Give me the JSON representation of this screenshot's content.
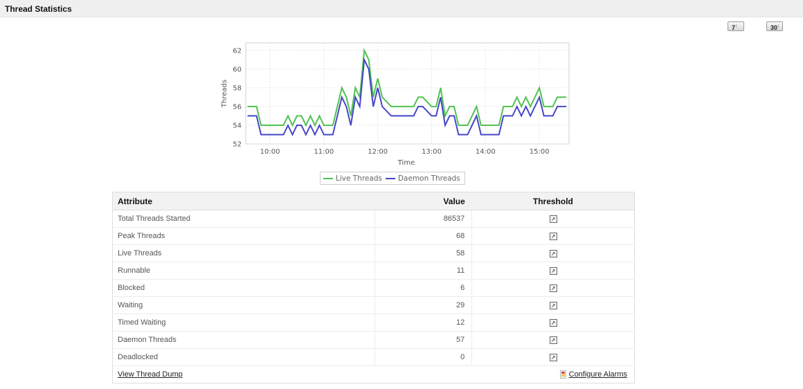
{
  "header": {
    "title": "Thread Statistics"
  },
  "period_buttons": [
    {
      "label": "7",
      "sup": "↑"
    },
    {
      "label": "30",
      "sup": "↑"
    }
  ],
  "chart_data": {
    "type": "line",
    "title": "",
    "xlabel": "Time",
    "ylabel": "Threads",
    "ylim": [
      52,
      62.8
    ],
    "yticks": [
      52,
      54,
      56,
      58,
      60,
      62
    ],
    "xlim": [
      "09:33",
      "15:33"
    ],
    "xticks": [
      "10:00",
      "11:00",
      "12:00",
      "13:00",
      "14:00",
      "15:00"
    ],
    "grid": true,
    "legend": "bottom",
    "x": [
      "09:35",
      "09:45",
      "09:50",
      "09:55",
      "10:05",
      "10:15",
      "10:20",
      "10:25",
      "10:30",
      "10:35",
      "10:40",
      "10:45",
      "10:50",
      "10:55",
      "11:00",
      "11:05",
      "11:10",
      "11:20",
      "11:25",
      "11:30",
      "11:35",
      "11:40",
      "11:45",
      "11:50",
      "11:55",
      "12:00",
      "12:05",
      "12:15",
      "12:20",
      "12:30",
      "12:35",
      "12:40",
      "12:45",
      "12:50",
      "13:00",
      "13:05",
      "13:10",
      "13:15",
      "13:20",
      "13:25",
      "13:30",
      "13:35",
      "13:40",
      "13:50",
      "13:55",
      "14:00",
      "14:05",
      "14:15",
      "14:20",
      "14:25",
      "14:30",
      "14:35",
      "14:40",
      "14:45",
      "14:50",
      "14:55",
      "15:00",
      "15:05",
      "15:10",
      "15:15",
      "15:20",
      "15:25",
      "15:30"
    ],
    "series": [
      {
        "name": "Live Threads",
        "color": "#4fc24f",
        "values": [
          56,
          56,
          54,
          54,
          54,
          54,
          55,
          54,
          55,
          55,
          54,
          55,
          54,
          55,
          54,
          54,
          54,
          58,
          57,
          55,
          58,
          57,
          62,
          61,
          57,
          59,
          57,
          56,
          56,
          56,
          56,
          56,
          57,
          57,
          56,
          56,
          58,
          55,
          56,
          56,
          54,
          54,
          54,
          56,
          54,
          54,
          54,
          54,
          56,
          56,
          56,
          57,
          56,
          57,
          56,
          57,
          58,
          56,
          56,
          56,
          57,
          57,
          57
        ]
      },
      {
        "name": "Daemon Threads",
        "color": "#4545c8",
        "values": [
          55,
          55,
          53,
          53,
          53,
          53,
          54,
          53,
          54,
          54,
          53,
          54,
          53,
          54,
          53,
          53,
          53,
          57,
          56,
          54,
          57,
          56,
          61,
          60,
          56,
          58,
          56,
          55,
          55,
          55,
          55,
          55,
          56,
          56,
          55,
          55,
          57,
          54,
          55,
          55,
          53,
          53,
          53,
          55,
          53,
          53,
          53,
          53,
          55,
          55,
          55,
          56,
          55,
          56,
          55,
          56,
          57,
          55,
          55,
          55,
          56,
          56,
          56
        ]
      }
    ]
  },
  "table": {
    "headers": {
      "attribute": "Attribute",
      "value": "Value",
      "threshold": "Threshold"
    },
    "threshold_icon": "edit-threshold-icon",
    "rows": [
      {
        "attribute": "Total Threads Started",
        "value": "86537"
      },
      {
        "attribute": "Peak Threads",
        "value": "68"
      },
      {
        "attribute": "Live Threads",
        "value": "58"
      },
      {
        "attribute": "Runnable",
        "value": "11"
      },
      {
        "attribute": "Blocked",
        "value": "6"
      },
      {
        "attribute": "Waiting",
        "value": "29"
      },
      {
        "attribute": "Timed Waiting",
        "value": "12"
      },
      {
        "attribute": "Daemon Threads",
        "value": "57"
      },
      {
        "attribute": "Deadlocked",
        "value": "0"
      }
    ],
    "footer": {
      "left_link": "View Thread Dump",
      "right_link": "Configure Alarms",
      "right_icon": "traffic-light-icon"
    }
  }
}
